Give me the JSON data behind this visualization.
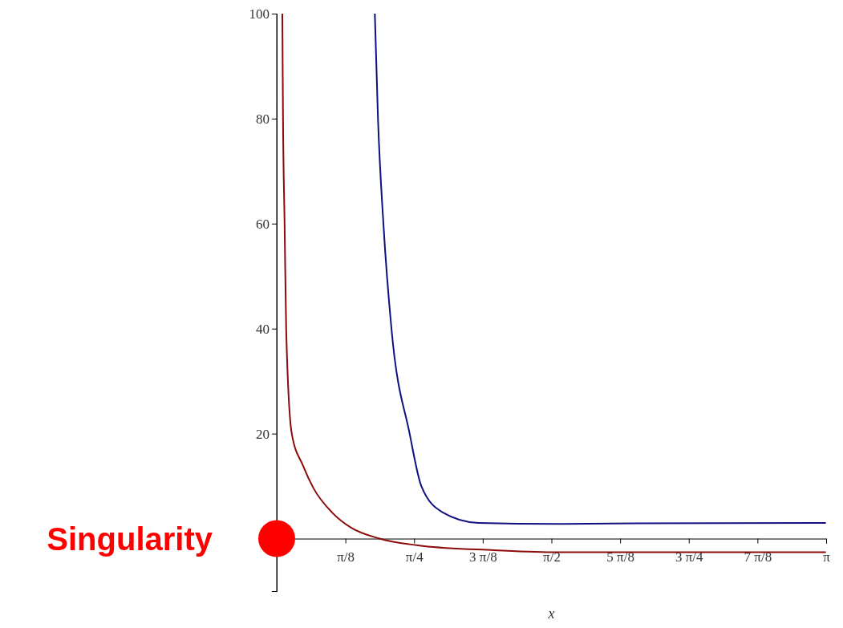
{
  "chart_data": {
    "type": "line",
    "xlabel": "x",
    "xlim": [
      0,
      3.1416
    ],
    "ylim": [
      -10,
      100
    ],
    "xticks": [
      {
        "value": 0.3927,
        "label": "π/8"
      },
      {
        "value": 0.7854,
        "label": "π/4"
      },
      {
        "value": 1.1781,
        "label": "3 π/8"
      },
      {
        "value": 1.5708,
        "label": "π/2"
      },
      {
        "value": 1.9635,
        "label": "5 π/8"
      },
      {
        "value": 2.3562,
        "label": "3 π/4"
      },
      {
        "value": 2.7489,
        "label": "7 π/8"
      },
      {
        "value": 3.1416,
        "label": "π"
      }
    ],
    "yticks": [
      20,
      40,
      60,
      80,
      100
    ],
    "grid": false,
    "series": [
      {
        "color": "#8b0a0a",
        "x": [
          0.032,
          0.036,
          0.045,
          0.054,
          0.086,
          0.149,
          0.212,
          0.316,
          0.429,
          0.588,
          0.836,
          1.243,
          1.605,
          3.14
        ],
        "values": [
          100,
          80,
          60,
          40,
          20,
          14,
          9.5,
          5,
          2,
          0,
          -1.4,
          -2.2,
          -2.6,
          -2.6
        ]
      },
      {
        "color": "#101080",
        "x": [
          0.561,
          0.579,
          0.61,
          0.656,
          0.76,
          0.827,
          0.949,
          1.153,
          1.605,
          2.057,
          3.14
        ],
        "values": [
          100,
          80,
          60,
          40,
          20,
          10,
          5,
          3,
          2.8,
          2.9,
          3
        ]
      }
    ],
    "annotations": [
      "Singularity"
    ]
  }
}
